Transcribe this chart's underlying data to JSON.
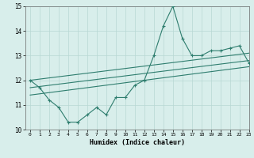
{
  "x": [
    0,
    1,
    2,
    3,
    4,
    5,
    6,
    7,
    8,
    9,
    10,
    11,
    12,
    13,
    14,
    15,
    16,
    17,
    18,
    19,
    20,
    21,
    22,
    23
  ],
  "y_main": [
    12.0,
    11.7,
    11.2,
    10.9,
    10.3,
    10.3,
    10.6,
    10.9,
    10.6,
    11.3,
    11.3,
    11.8,
    12.0,
    13.0,
    14.2,
    15.0,
    13.7,
    13.0,
    13.0,
    13.2,
    13.2,
    13.3,
    13.4,
    12.7
  ],
  "trend1_x": [
    0,
    23
  ],
  "trend1_y": [
    12.0,
    13.1
  ],
  "trend2_x": [
    0,
    23
  ],
  "trend2_y": [
    11.7,
    12.8
  ],
  "trend3_x": [
    0,
    23
  ],
  "trend3_y": [
    11.4,
    12.55
  ],
  "line_color": "#2e7d6e",
  "bg_color": "#d8eeeb",
  "grid_color": "#b8d8d4",
  "xlabel": "Humidex (Indice chaleur)",
  "ylim": [
    10,
    15
  ],
  "xlim": [
    -0.5,
    23
  ],
  "yticks": [
    10,
    11,
    12,
    13,
    14,
    15
  ],
  "xticks": [
    0,
    1,
    2,
    3,
    4,
    5,
    6,
    7,
    8,
    9,
    10,
    11,
    12,
    13,
    14,
    15,
    16,
    17,
    18,
    19,
    20,
    21,
    22,
    23
  ]
}
